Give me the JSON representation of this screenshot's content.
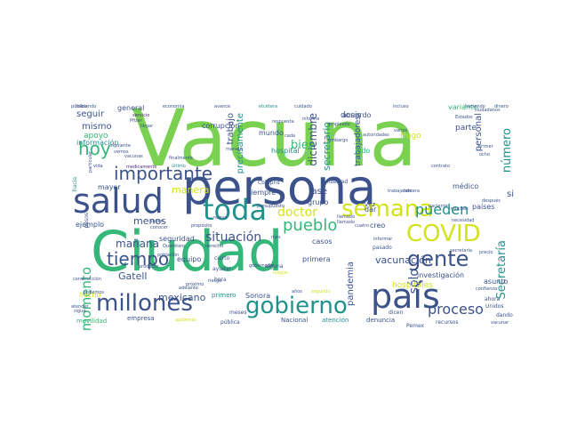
{
  "palette": {
    "light_green": "#7ad151",
    "teal": "#21918c",
    "navy": "#3b528b",
    "yellow": "#d2e21b",
    "green": "#35b779",
    "purple": "#482878",
    "dark": "#440154"
  },
  "words": [
    {
      "text": "Vacuna",
      "size": 88,
      "color": "light_green"
    },
    {
      "text": "persona",
      "size": 54,
      "color": "navy"
    },
    {
      "text": "Ciudad",
      "size": 62,
      "color": "green"
    },
    {
      "text": "salud",
      "size": 38,
      "color": "navy"
    },
    {
      "text": "país",
      "size": 38,
      "color": "navy"
    },
    {
      "text": "toda",
      "size": 32,
      "color": "teal"
    },
    {
      "text": "millones",
      "size": 26,
      "color": "navy"
    },
    {
      "text": "gobierno",
      "size": 26,
      "color": "teal"
    },
    {
      "text": "semana",
      "size": 26,
      "color": "yellow"
    },
    {
      "text": "COVID",
      "size": 26,
      "color": "yellow"
    },
    {
      "text": "gente",
      "size": 24,
      "color": "navy"
    },
    {
      "text": "importante",
      "size": 20,
      "color": "navy"
    },
    {
      "text": "hoy",
      "size": 20,
      "color": "green"
    },
    {
      "text": "tiempo",
      "size": 20,
      "color": "navy"
    },
    {
      "text": "pueblo",
      "size": 18,
      "color": "green"
    },
    {
      "text": "pueden",
      "size": 16,
      "color": "teal"
    },
    {
      "text": "proceso",
      "size": 16,
      "color": "navy"
    },
    {
      "text": "momento",
      "size": 15,
      "color": "green"
    },
    {
      "text": "doctor",
      "size": 14,
      "color": "yellow"
    },
    {
      "text": "situación",
      "size": 14,
      "color": "navy"
    },
    {
      "text": "Secretaría",
      "size": 13,
      "color": "teal"
    },
    {
      "text": "número",
      "size": 13,
      "color": "teal"
    },
    {
      "text": "sólo",
      "size": 14,
      "color": "navy"
    },
    {
      "text": "bien",
      "size": 13,
      "color": "green"
    },
    {
      "text": "mañana",
      "size": 12,
      "color": "navy"
    },
    {
      "text": "menos",
      "size": 11,
      "color": "navy"
    },
    {
      "text": "manera",
      "size": 11,
      "color": "yellow"
    },
    {
      "text": "diciembre",
      "size": 12,
      "color": "navy"
    },
    {
      "text": "precisamente",
      "size": 10,
      "color": "teal"
    },
    {
      "text": "trabajo",
      "size": 10,
      "color": "navy"
    },
    {
      "text": "Gatell",
      "size": 11,
      "color": "navy"
    },
    {
      "text": "mexicano",
      "size": 11,
      "color": "navy"
    },
    {
      "text": "vacunación",
      "size": 11,
      "color": "navy"
    },
    {
      "text": "secretario",
      "size": 11,
      "color": "teal"
    },
    {
      "text": "personal",
      "size": 10,
      "color": "navy"
    },
    {
      "text": "trabajadores",
      "size": 9,
      "color": "navy"
    },
    {
      "text": "seguir",
      "size": 10,
      "color": "navy"
    },
    {
      "text": "mismo",
      "size": 10,
      "color": "navy"
    },
    {
      "text": "apoyo",
      "size": 9,
      "color": "green"
    },
    {
      "text": "fase",
      "size": 10,
      "color": "navy"
    },
    {
      "text": "sino",
      "size": 10,
      "color": "navy"
    },
    {
      "text": "parte",
      "size": 9,
      "color": "navy"
    },
    {
      "text": "Hugo",
      "size": 9,
      "color": "yellow"
    },
    {
      "text": "pandemia",
      "size": 10,
      "color": "navy"
    },
    {
      "text": "hospitales",
      "size": 9,
      "color": "yellow"
    },
    {
      "text": "dosis",
      "size": 9,
      "color": "navy"
    },
    {
      "text": "variante",
      "size": 8,
      "color": "green"
    },
    {
      "text": "general",
      "size": 8,
      "color": "navy"
    },
    {
      "text": "información",
      "size": 8,
      "color": "teal"
    },
    {
      "text": "corrupción",
      "size": 8,
      "color": "navy"
    },
    {
      "text": "mundo",
      "size": 8,
      "color": "navy"
    },
    {
      "text": "hospital",
      "size": 8,
      "color": "teal"
    },
    {
      "text": "sido",
      "size": 8,
      "color": "green"
    },
    {
      "text": "mayor",
      "size": 8,
      "color": "navy"
    },
    {
      "text": "siempre",
      "size": 8,
      "color": "navy"
    },
    {
      "text": "grupo",
      "size": 8,
      "color": "navy"
    },
    {
      "text": "creo",
      "size": 8,
      "color": "navy"
    },
    {
      "text": "dar",
      "size": 8,
      "color": "navy"
    },
    {
      "text": "médico",
      "size": 8,
      "color": "navy"
    },
    {
      "text": "países",
      "size": 8,
      "color": "navy"
    },
    {
      "text": "asunto",
      "size": 8,
      "color": "navy"
    },
    {
      "text": "ejemplo",
      "size": 8,
      "color": "navy"
    },
    {
      "text": "seguridad",
      "size": 8,
      "color": "navy"
    },
    {
      "text": "equipo",
      "size": 8,
      "color": "navy"
    },
    {
      "text": "casos",
      "size": 8,
      "color": "navy"
    },
    {
      "text": "primera",
      "size": 8,
      "color": "navy"
    },
    {
      "text": "acuerdo",
      "size": 8,
      "color": "navy"
    },
    {
      "text": "investigación",
      "size": 8,
      "color": "navy"
    },
    {
      "text": "hecho",
      "size": 8,
      "color": "yellow"
    },
    {
      "text": "Sonora",
      "size": 8,
      "color": "navy"
    },
    {
      "text": "empresa",
      "size": 7,
      "color": "navy"
    },
    {
      "text": "movilidad",
      "size": 7,
      "color": "green"
    },
    {
      "text": "Nacional",
      "size": 7,
      "color": "navy"
    },
    {
      "text": "atención",
      "size": 7,
      "color": "teal"
    },
    {
      "text": "denuncia",
      "size": 7,
      "color": "navy"
    },
    {
      "text": "Cofepris",
      "size": 6,
      "color": "navy"
    },
    {
      "text": "vez",
      "size": 7,
      "color": "navy"
    },
    {
      "text": "ahora",
      "size": 6,
      "color": "navy"
    },
    {
      "text": "Unidos",
      "size": 6,
      "color": "navy"
    },
    {
      "text": "dando",
      "size": 6,
      "color": "navy"
    },
    {
      "text": "vacunar",
      "size": 5,
      "color": "navy"
    },
    {
      "text": "Pemex",
      "size": 6,
      "color": "navy"
    },
    {
      "text": "recursos",
      "size": 6,
      "color": "navy"
    },
    {
      "text": "dicen",
      "size": 6,
      "color": "navy"
    },
    {
      "text": "pública",
      "size": 6,
      "color": "navy"
    },
    {
      "text": "meses",
      "size": 6,
      "color": "navy"
    },
    {
      "text": "primero",
      "size": 7,
      "color": "teal"
    },
    {
      "text": "hora",
      "size": 6,
      "color": "navy"
    },
    {
      "text": "ayudar",
      "size": 6,
      "color": "navy"
    },
    {
      "text": "alguna",
      "size": 6,
      "color": "navy"
    },
    {
      "text": "cierto",
      "size": 6,
      "color": "navy"
    },
    {
      "text": "precio",
      "size": 5,
      "color": "navy"
    },
    {
      "text": "confianza",
      "size": 5,
      "color": "navy"
    },
    {
      "text": "pasado",
      "size": 6,
      "color": "navy"
    },
    {
      "text": "informar",
      "size": 5,
      "color": "navy"
    },
    {
      "text": "libertad",
      "size": 6,
      "color": "navy"
    },
    {
      "text": "cuatro",
      "size": 5,
      "color": "navy"
    },
    {
      "text": "llamado",
      "size": 5,
      "color": "navy"
    },
    {
      "text": "contrato",
      "size": 5,
      "color": "navy"
    },
    {
      "text": "paciente",
      "size": 5,
      "color": "navy"
    },
    {
      "text": "ocho",
      "size": 5,
      "color": "navy"
    },
    {
      "text": "primer",
      "size": 5,
      "color": "navy"
    },
    {
      "text": "embargo",
      "size": 5,
      "color": "navy"
    },
    {
      "text": "cada",
      "size": 5,
      "color": "navy"
    },
    {
      "text": "respuesta",
      "size": 5,
      "color": "navy"
    },
    {
      "text": "cuidado",
      "size": 5,
      "color": "navy"
    },
    {
      "text": "etcétera",
      "size": 5,
      "color": "teal"
    },
    {
      "text": "avance",
      "size": 5,
      "color": "navy"
    },
    {
      "text": "economía",
      "size": 5,
      "color": "navy"
    },
    {
      "text": "habiando",
      "size": 5,
      "color": "navy"
    },
    {
      "text": "público",
      "size": 5,
      "color": "navy"
    },
    {
      "text": "servicio",
      "size": 5,
      "color": "purple"
    },
    {
      "text": "Pfizer",
      "size": 5,
      "color": "navy"
    },
    {
      "text": "llegar",
      "size": 5,
      "color": "navy"
    },
    {
      "text": "siguiente",
      "size": 5,
      "color": "navy"
    },
    {
      "text": "vemos",
      "size": 5,
      "color": "navy"
    },
    {
      "text": "vida",
      "size": 5,
      "color": "navy"
    },
    {
      "text": "medicamento",
      "size": 5,
      "color": "purple"
    },
    {
      "text": "manejo",
      "size": 5,
      "color": "navy"
    },
    {
      "text": "saben",
      "size": 5,
      "color": "navy"
    },
    {
      "text": "conocer",
      "size": 5,
      "color": "navy"
    },
    {
      "text": "propósito",
      "size": 5,
      "color": "navy"
    },
    {
      "text": "derecho",
      "size": 5,
      "color": "navy"
    },
    {
      "text": "producto",
      "size": 5,
      "color": "navy"
    },
    {
      "text": "riesgo",
      "size": 5,
      "color": "navy"
    },
    {
      "text": "adelante",
      "size": 5,
      "color": "navy"
    },
    {
      "text": "próximo",
      "size": 5,
      "color": "navy"
    },
    {
      "text": "población",
      "size": 5,
      "color": "navy"
    },
    {
      "text": "construcción",
      "size": 5,
      "color": "navy"
    },
    {
      "text": "podemos",
      "size": 5,
      "color": "navy"
    },
    {
      "text": "atender",
      "size": 5,
      "color": "navy"
    },
    {
      "text": "sigue",
      "size": 5,
      "color": "navy"
    },
    {
      "text": "apidemia",
      "size": 5,
      "color": "yellow"
    },
    {
      "text": "años",
      "size": 5,
      "color": "navy"
    },
    {
      "text": "segundo",
      "size": 5,
      "color": "yellow"
    },
    {
      "text": "muchas",
      "size": 5,
      "color": "navy"
    },
    {
      "text": "necesidad",
      "size": 5,
      "color": "navy"
    },
    {
      "text": "después",
      "size": 5,
      "color": "navy"
    },
    {
      "text": "presupuesto",
      "size": 5,
      "color": "navy"
    },
    {
      "text": "nueva",
      "size": 5,
      "color": "navy"
    },
    {
      "text": "mes",
      "size": 5,
      "color": "navy"
    },
    {
      "text": "tercera",
      "size": 5,
      "color": "navy"
    },
    {
      "text": "incluso",
      "size": 5,
      "color": "navy"
    },
    {
      "text": "haciendo",
      "size": 5,
      "color": "navy"
    },
    {
      "text": "dinero",
      "size": 5,
      "color": "navy"
    },
    {
      "text": "empleado",
      "size": 5,
      "color": "navy"
    },
    {
      "text": "autoridades",
      "size": 5,
      "color": "navy"
    },
    {
      "text": "varios",
      "size": 5,
      "color": "navy"
    },
    {
      "text": "Querétaro",
      "size": 5,
      "color": "navy"
    },
    {
      "text": "gobernador",
      "size": 5,
      "color": "navy"
    },
    {
      "text": "ningún",
      "size": 5,
      "color": "yellow"
    },
    {
      "text": "trabajando",
      "size": 5,
      "color": "navy"
    },
    {
      "text": "informe",
      "size": 5,
      "color": "navy"
    },
    {
      "text": "llamado",
      "size": 5,
      "color": "navy"
    },
    {
      "text": "secretaria",
      "size": 5,
      "color": "navy"
    },
    {
      "text": "Estados",
      "size": 5,
      "color": "navy"
    },
    {
      "text": "ciudadanos",
      "size": 5,
      "color": "navy"
    },
    {
      "text": "último",
      "size": 5,
      "color": "teal"
    },
    {
      "text": "finalmente",
      "size": 5,
      "color": "navy"
    },
    {
      "text": "hacia",
      "size": 6,
      "color": "teal"
    },
    {
      "text": "pesos",
      "size": 6,
      "color": "navy"
    },
    {
      "text": "particular",
      "size": 5,
      "color": "navy"
    },
    {
      "text": "vacunas",
      "size": 5,
      "color": "navy"
    }
  ]
}
